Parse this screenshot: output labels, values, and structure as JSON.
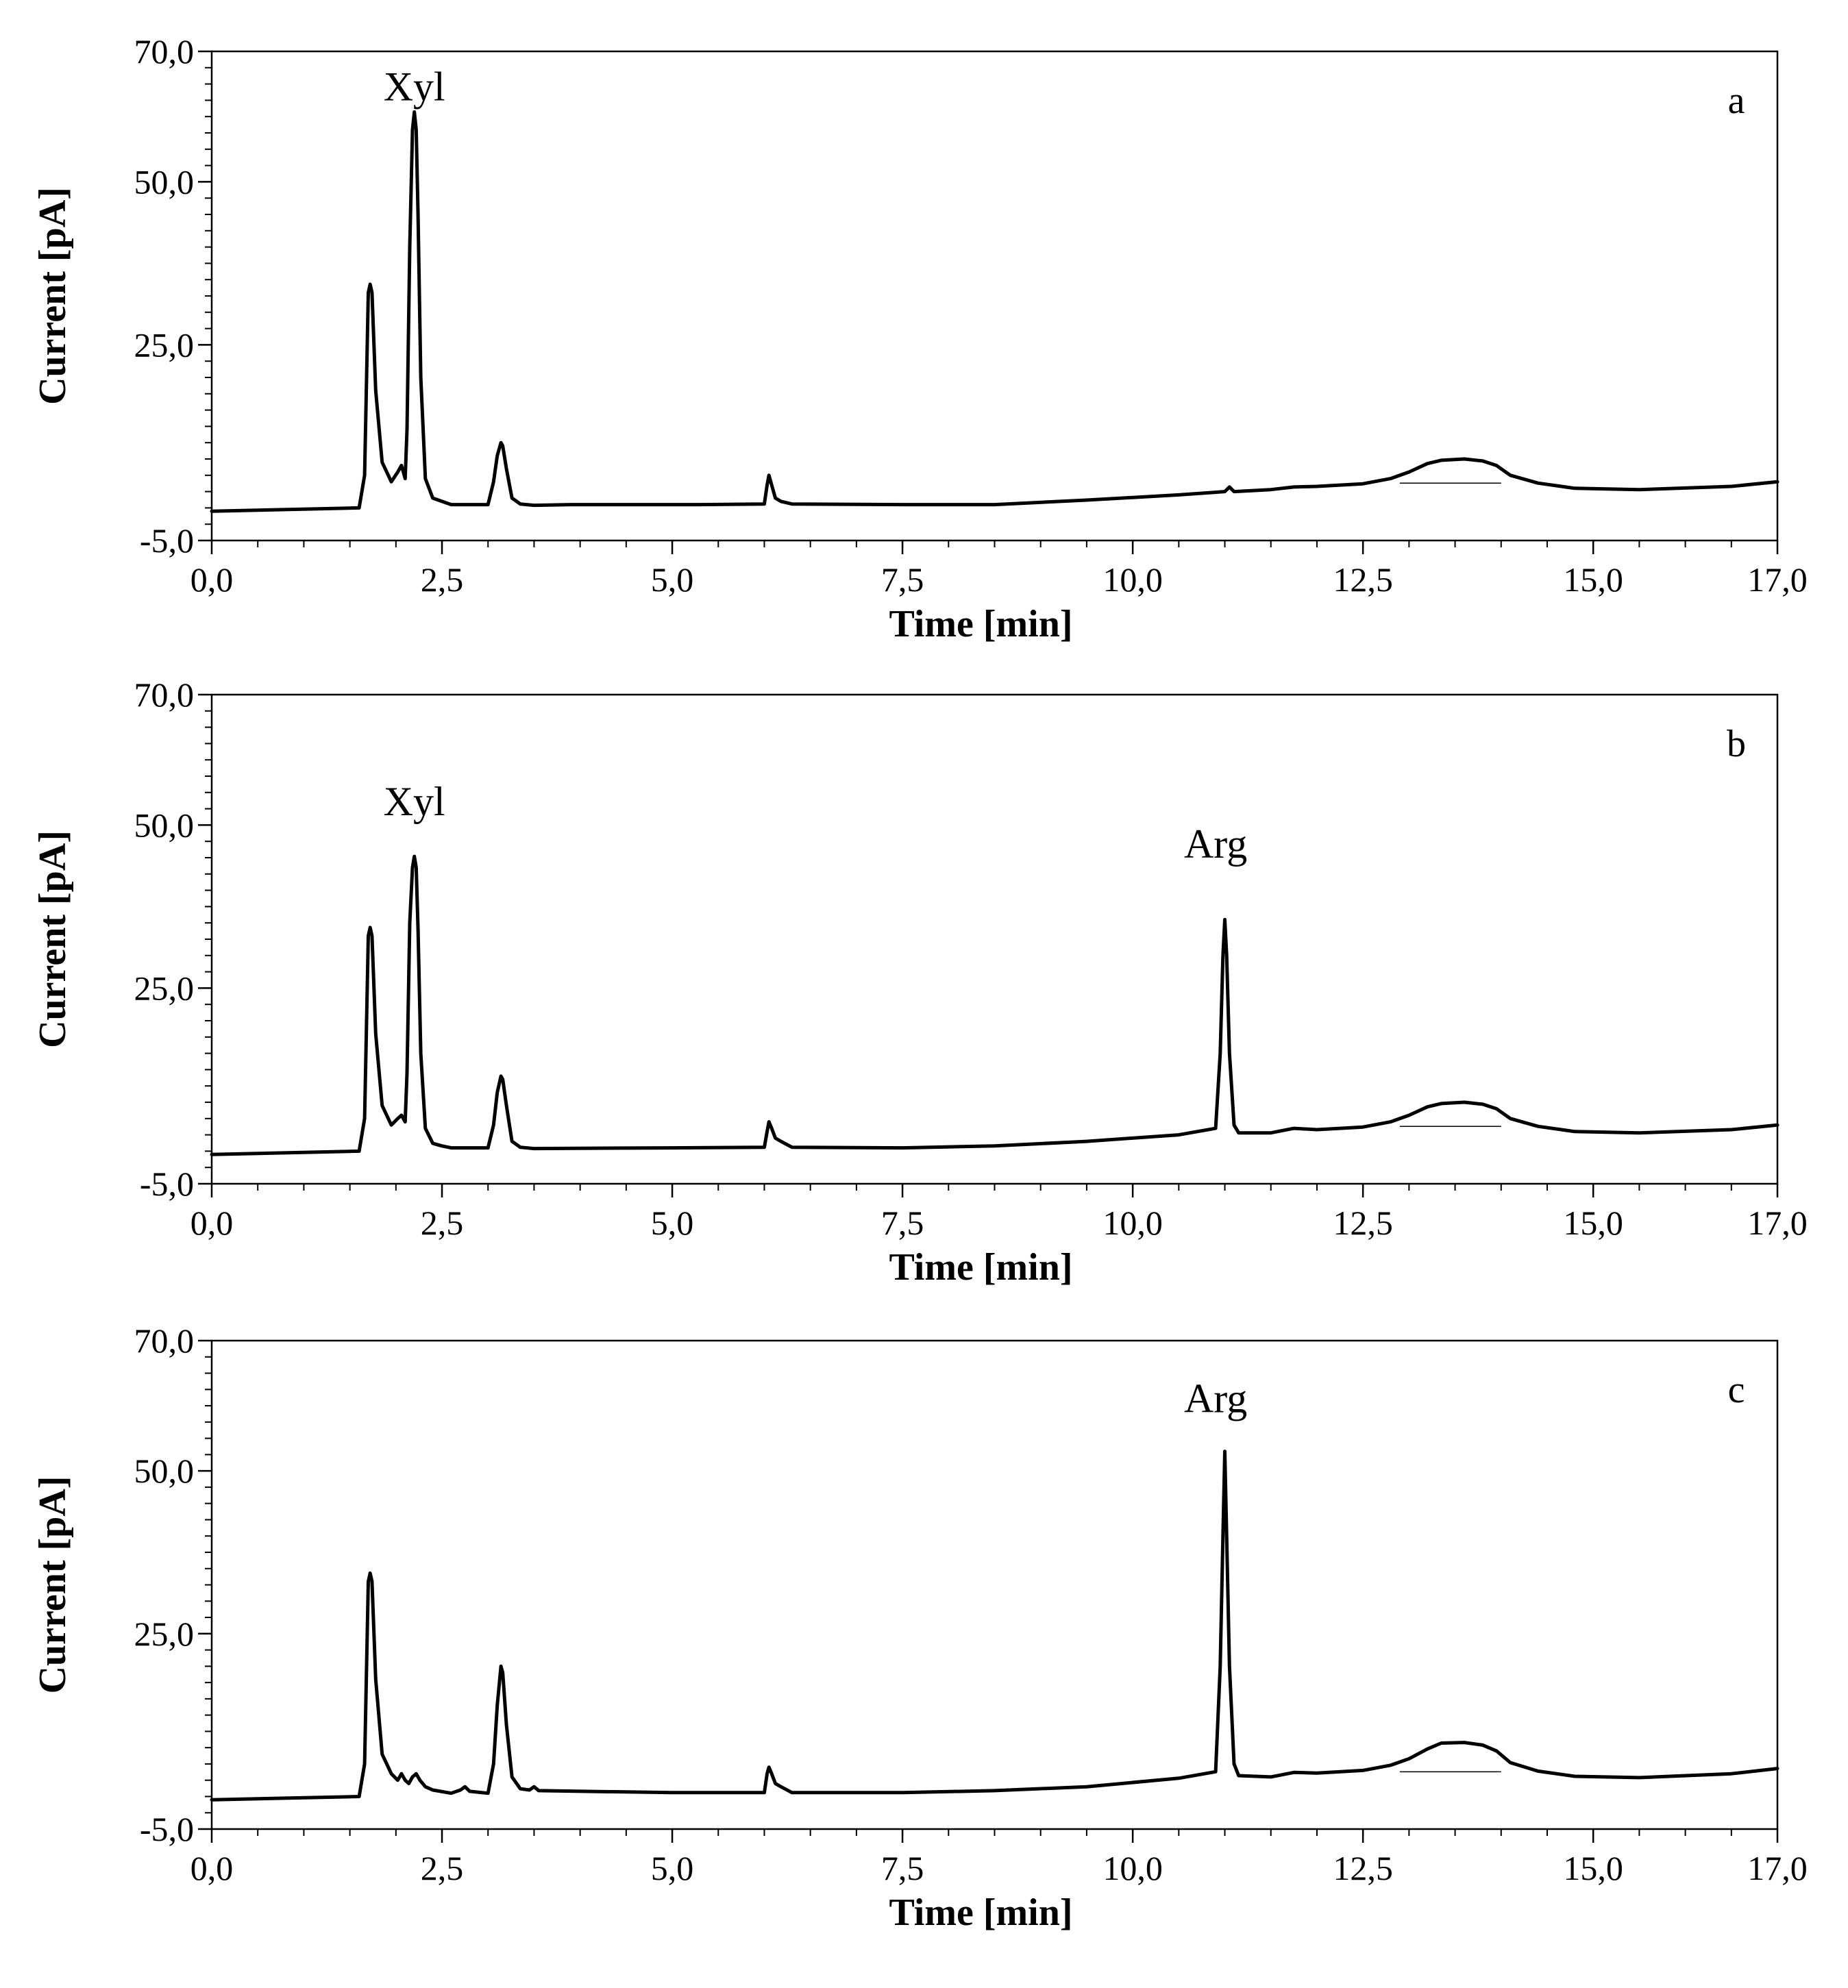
{
  "chart_data": [
    {
      "panel": "a",
      "type": "line",
      "xlabel": "Time [min]",
      "ylabel": "Current [pA]",
      "xlim": [
        0,
        17
      ],
      "ylim": [
        -5,
        70
      ],
      "xticks": [
        "0,0",
        "2,5",
        "5,0",
        "7,5",
        "10,0",
        "12,5",
        "15,0",
        "17,0"
      ],
      "yticks": [
        "-5,0",
        "25,0",
        "50,0",
        "70,0"
      ],
      "annotations": [
        {
          "text": "Xyl",
          "x": 2.2,
          "y": 62.5
        }
      ],
      "series": [
        {
          "name": "chromatogram",
          "x": [
            0,
            1.6,
            1.66,
            1.7,
            1.72,
            1.74,
            1.78,
            1.85,
            1.95,
            2.02,
            2.06,
            2.08,
            2.1,
            2.12,
            2.15,
            2.18,
            2.2,
            2.22,
            2.24,
            2.27,
            2.32,
            2.4,
            2.5,
            2.6,
            3.0,
            3.06,
            3.1,
            3.14,
            3.16,
            3.2,
            3.26,
            3.35,
            3.5,
            3.9,
            4.4,
            5.3,
            6.0,
            6.03,
            6.05,
            6.08,
            6.12,
            6.18,
            6.3,
            7.5,
            8.5,
            9.5,
            10.5,
            11.0,
            11.05,
            11.1,
            11.5,
            11.75,
            12.0,
            12.5,
            12.8,
            13.0,
            13.2,
            13.35,
            13.6,
            13.8,
            13.95,
            14.1,
            14.4,
            14.8,
            15.5,
            16.5,
            17.0
          ],
          "y": [
            -0.5,
            0.0,
            5.0,
            33.0,
            34.3,
            33.0,
            18.0,
            7.0,
            4.0,
            5.5,
            6.5,
            5.5,
            4.5,
            12.0,
            40.0,
            58.0,
            60.7,
            58.0,
            45.0,
            20.0,
            4.5,
            1.5,
            1.0,
            0.5,
            0.5,
            4.0,
            8.0,
            10.0,
            9.5,
            6.0,
            1.5,
            0.6,
            0.4,
            0.5,
            0.5,
            0.5,
            0.6,
            3.5,
            5.0,
            3.5,
            1.5,
            1.0,
            0.6,
            0.5,
            0.5,
            1.2,
            2.0,
            2.5,
            3.2,
            2.5,
            2.8,
            3.2,
            3.3,
            3.7,
            4.5,
            5.5,
            6.8,
            7.3,
            7.5,
            7.2,
            6.5,
            5.0,
            3.8,
            3.0,
            2.8,
            3.3,
            4.0
          ]
        }
      ]
    },
    {
      "panel": "b",
      "type": "line",
      "xlabel": "Time [min]",
      "ylabel": "Current [pA]",
      "xlim": [
        0,
        17
      ],
      "ylim": [
        -5,
        70
      ],
      "xticks": [
        "0,0",
        "2,5",
        "5,0",
        "7,5",
        "10,0",
        "12,5",
        "15,0",
        "17,0"
      ],
      "yticks": [
        "-5,0",
        "25,0",
        "50,0",
        "70,0"
      ],
      "annotations": [
        {
          "text": "Xyl",
          "x": 2.2,
          "y": 51.5
        },
        {
          "text": "Arg",
          "x": 10.9,
          "y": 45.0
        }
      ],
      "series": [
        {
          "name": "chromatogram",
          "x": [
            0,
            1.6,
            1.66,
            1.7,
            1.72,
            1.74,
            1.78,
            1.85,
            1.95,
            2.02,
            2.06,
            2.08,
            2.1,
            2.12,
            2.15,
            2.18,
            2.2,
            2.22,
            2.24,
            2.27,
            2.32,
            2.4,
            2.5,
            2.6,
            3.0,
            3.06,
            3.1,
            3.14,
            3.16,
            3.2,
            3.26,
            3.35,
            3.5,
            5.0,
            6.0,
            6.03,
            6.05,
            6.08,
            6.12,
            6.18,
            6.3,
            7.5,
            8.5,
            9.5,
            10.5,
            10.9,
            10.95,
            10.98,
            11.0,
            11.02,
            11.05,
            11.1,
            11.15,
            11.5,
            11.75,
            12.0,
            12.5,
            12.8,
            13.0,
            13.2,
            13.35,
            13.6,
            13.8,
            13.95,
            14.1,
            14.4,
            14.8,
            15.5,
            16.5,
            17.0
          ],
          "y": [
            -0.5,
            0.0,
            5.0,
            33.0,
            34.3,
            33.0,
            18.0,
            7.0,
            4.0,
            5.0,
            5.5,
            5.0,
            4.5,
            12.0,
            35.0,
            43.5,
            45.2,
            43.5,
            34.0,
            15.0,
            3.5,
            1.2,
            0.8,
            0.5,
            0.5,
            4.0,
            9.0,
            11.5,
            11.0,
            7.0,
            1.5,
            0.6,
            0.4,
            0.5,
            0.6,
            3.0,
            4.5,
            3.5,
            2.0,
            1.5,
            0.6,
            0.5,
            0.8,
            1.5,
            2.5,
            3.5,
            15.0,
            30.0,
            35.5,
            30.0,
            15.0,
            4.0,
            2.8,
            2.8,
            3.5,
            3.3,
            3.7,
            4.5,
            5.5,
            6.8,
            7.3,
            7.5,
            7.2,
            6.5,
            5.0,
            3.8,
            3.0,
            2.8,
            3.3,
            4.0
          ]
        }
      ]
    },
    {
      "panel": "c",
      "type": "line",
      "xlabel": "Time [min]",
      "ylabel": "Current [pA]",
      "xlim": [
        0,
        17
      ],
      "ylim": [
        -5,
        70
      ],
      "xticks": [
        "0,0",
        "2,5",
        "5,0",
        "7,5",
        "10,0",
        "12,5",
        "15,0",
        "17,0"
      ],
      "yticks": [
        "-5,0",
        "25,0",
        "50,0",
        "70,0"
      ],
      "annotations": [
        {
          "text": "Arg",
          "x": 10.9,
          "y": 59.0
        }
      ],
      "series": [
        {
          "name": "chromatogram",
          "x": [
            0,
            1.6,
            1.66,
            1.7,
            1.72,
            1.74,
            1.78,
            1.85,
            1.95,
            2.02,
            2.06,
            2.1,
            2.14,
            2.18,
            2.22,
            2.26,
            2.32,
            2.4,
            2.6,
            2.7,
            2.75,
            2.8,
            3.0,
            3.06,
            3.1,
            3.14,
            3.16,
            3.2,
            3.26,
            3.35,
            3.45,
            3.5,
            3.55,
            5.0,
            6.0,
            6.03,
            6.05,
            6.08,
            6.12,
            6.18,
            6.3,
            7.5,
            8.5,
            9.5,
            10.5,
            10.9,
            10.95,
            10.98,
            11.0,
            11.02,
            11.05,
            11.1,
            11.15,
            11.5,
            11.75,
            12.0,
            12.5,
            12.8,
            13.0,
            13.2,
            13.35,
            13.6,
            13.8,
            13.95,
            14.1,
            14.4,
            14.8,
            15.5,
            16.5,
            17.0
          ],
          "y": [
            -0.5,
            0.0,
            5.0,
            33.0,
            34.3,
            33.0,
            18.0,
            6.5,
            3.5,
            2.5,
            3.5,
            2.5,
            2.0,
            3.0,
            3.5,
            2.5,
            1.5,
            1.0,
            0.5,
            1.0,
            1.5,
            0.8,
            0.5,
            5.0,
            14.0,
            20.0,
            19.0,
            11.0,
            3.0,
            1.2,
            1.0,
            1.5,
            0.9,
            0.6,
            0.6,
            3.5,
            4.5,
            3.5,
            2.0,
            1.5,
            0.6,
            0.6,
            0.9,
            1.5,
            2.8,
            3.8,
            20.0,
            40.0,
            53.0,
            40.0,
            20.0,
            5.0,
            3.2,
            3.0,
            3.7,
            3.6,
            4.0,
            4.8,
            5.8,
            7.3,
            8.2,
            8.3,
            7.9,
            7.0,
            5.2,
            3.9,
            3.1,
            2.9,
            3.5,
            4.3
          ]
        }
      ]
    }
  ]
}
